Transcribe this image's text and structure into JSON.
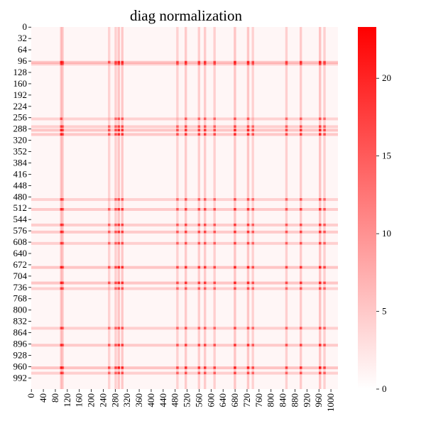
{
  "chart_data": {
    "type": "heatmap",
    "title": "diag normalization",
    "xlabel": "",
    "ylabel": "",
    "n": 1024,
    "x_range": [
      0,
      1023
    ],
    "y_range": [
      0,
      1023
    ],
    "y_ticks": [
      0,
      32,
      64,
      96,
      128,
      160,
      192,
      224,
      256,
      288,
      320,
      352,
      384,
      416,
      448,
      480,
      512,
      544,
      576,
      608,
      640,
      672,
      704,
      736,
      768,
      800,
      832,
      864,
      896,
      928,
      960,
      992
    ],
    "x_ticks": [
      0,
      40,
      80,
      120,
      160,
      200,
      240,
      280,
      320,
      360,
      400,
      440,
      480,
      520,
      560,
      600,
      640,
      680,
      720,
      760,
      800,
      840,
      880,
      920,
      960,
      1000
    ],
    "colorbar": {
      "min": 0,
      "max": 23.3,
      "ticks": [
        0,
        5,
        10,
        15,
        20
      ],
      "color_low": "#ffffff",
      "color_high": "#ff0000"
    },
    "high_intensity_bands": [
      {
        "index": 96,
        "strength": 0.9
      },
      {
        "index": 101,
        "strength": 0.55
      },
      {
        "index": 256,
        "strength": 0.5
      },
      {
        "index": 288,
        "strength": 0.95
      },
      {
        "index": 278,
        "strength": 0.6
      },
      {
        "index": 300,
        "strength": 0.85
      },
      {
        "index": 484,
        "strength": 0.55
      },
      {
        "index": 512,
        "strength": 0.8
      },
      {
        "index": 556,
        "strength": 0.7
      },
      {
        "index": 576,
        "strength": 0.75
      },
      {
        "index": 608,
        "strength": 0.6
      },
      {
        "index": 676,
        "strength": 0.95
      },
      {
        "index": 720,
        "strength": 0.9
      },
      {
        "index": 736,
        "strength": 0.55
      },
      {
        "index": 848,
        "strength": 0.6
      },
      {
        "index": 896,
        "strength": 0.8
      },
      {
        "index": 960,
        "strength": 1.0
      },
      {
        "index": 975,
        "strength": 0.6
      }
    ]
  }
}
